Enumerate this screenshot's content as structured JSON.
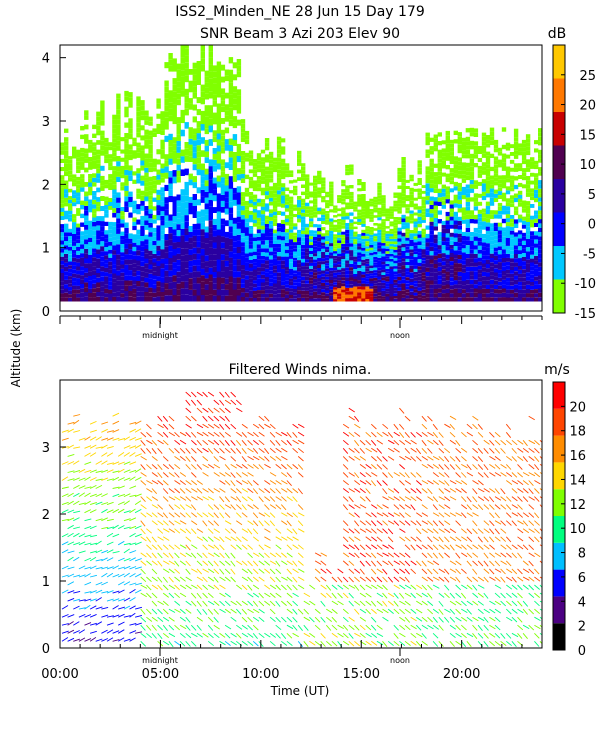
{
  "header": {
    "title_line1": "ISS2_Minden_NE  28 Jun 15 Day 179",
    "title_line2": "SNR Beam 3 Azi 203 Elev 90"
  },
  "shared": {
    "ylabel": "Altitude (km)",
    "xlabel": "Time (UT)",
    "midnight_label": "midnight",
    "noon_label": "noon"
  },
  "colors": {
    "snr": [
      "#80ff00",
      "#00c8ff",
      "#0000ff",
      "#2a00a0",
      "#500050",
      "#c80000",
      "#ff7800",
      "#ffc800"
    ],
    "wind": [
      "#000000",
      "#4b0082",
      "#0000ff",
      "#00bfff",
      "#00ff7f",
      "#7fff00",
      "#ffd700",
      "#ff8c00",
      "#ff4500",
      "#ff0000"
    ]
  },
  "chart_data": [
    {
      "type": "heatmap",
      "title": "SNR Beam 3 Azi 203 Elev 90",
      "ylabel": "Altitude (km)",
      "xlabel": "Time (UT)",
      "xlim": [
        0,
        24
      ],
      "ylim": [
        0,
        4.2
      ],
      "yticks": [
        "0",
        "1",
        "2",
        "3",
        "4"
      ],
      "colorbar": {
        "unit": "dB",
        "ticks": [
          "25",
          "20",
          "15",
          "10",
          "5",
          "0",
          "-5",
          "-10",
          "-15"
        ],
        "range": [
          -15,
          30
        ]
      },
      "markers": [
        "midnight",
        "noon"
      ]
    },
    {
      "type": "scatter",
      "title": "Filtered Winds nima.",
      "ylabel": "Altitude (km)",
      "xlabel": "Time (UT)",
      "xlim": [
        0,
        24
      ],
      "ylim": [
        0,
        4.0
      ],
      "xticks": [
        "00:00",
        "05:00",
        "10:00",
        "15:00",
        "20:00"
      ],
      "yticks": [
        "0",
        "1",
        "2",
        "3"
      ],
      "colorbar": {
        "unit": "m/s",
        "ticks": [
          "20",
          "18",
          "16",
          "14",
          "12",
          "10",
          "8",
          "6",
          "4",
          "2",
          "0"
        ],
        "range": [
          0,
          22
        ]
      },
      "markers": [
        "midnight",
        "noon"
      ]
    }
  ]
}
